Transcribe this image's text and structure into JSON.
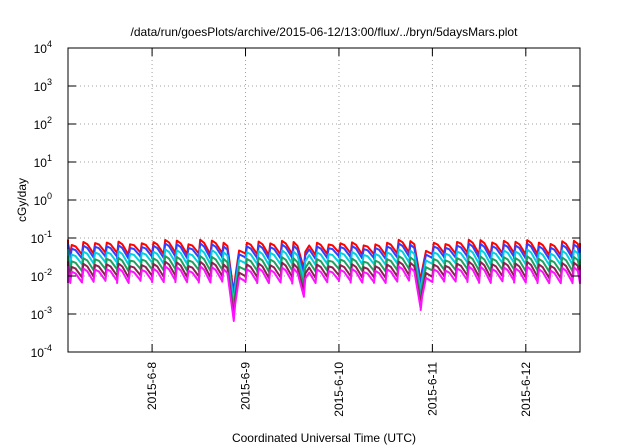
{
  "chart_data": {
    "type": "line",
    "title": "/data/run/goesPlots/archive/2015-06-12/13:00/flux/../bryn/5daysMars.plot",
    "xlabel": "Coordinated Universal Time (UTC)",
    "ylabel": "cGy/day",
    "y_scale": "log",
    "ylim_exponents": [
      -4,
      4
    ],
    "y_tick_labels": [
      {
        "base": "10",
        "exp": "-4"
      },
      {
        "base": "10",
        "exp": "-3"
      },
      {
        "base": "10",
        "exp": "-2"
      },
      {
        "base": "10",
        "exp": "-1"
      },
      {
        "base": "10",
        "exp": "0"
      },
      {
        "base": "10",
        "exp": "1"
      },
      {
        "base": "10",
        "exp": "2"
      },
      {
        "base": "10",
        "exp": "3"
      },
      {
        "base": "10",
        "exp": "4"
      }
    ],
    "x_tick_labels": [
      "2015-6-8",
      "2015-6-9",
      "2015-6-10",
      "2015-6-11",
      "2015-6-12"
    ],
    "xlim_days": [
      7.1,
      12.58
    ],
    "grid": true,
    "cycle_period_days": 0.125,
    "dips": [
      {
        "day": 8.88,
        "depth_decades": 1.05
      },
      {
        "day": 9.62,
        "depth_decades": 0.35
      },
      {
        "day": 10.88,
        "depth_decades": 0.75
      }
    ],
    "series": [
      {
        "color": "#ff0000",
        "peak": 0.075,
        "trough": 0.038
      },
      {
        "color": "#3040ff",
        "peak": 0.06,
        "trough": 0.03
      },
      {
        "color": "#00d0e0",
        "peak": 0.042,
        "trough": 0.021
      },
      {
        "color": "#20a060",
        "peak": 0.028,
        "trough": 0.014
      },
      {
        "color": "#8c2050",
        "peak": 0.02,
        "trough": 0.0095
      },
      {
        "color": "#ff10ff",
        "peak": 0.015,
        "trough": 0.007
      }
    ]
  }
}
